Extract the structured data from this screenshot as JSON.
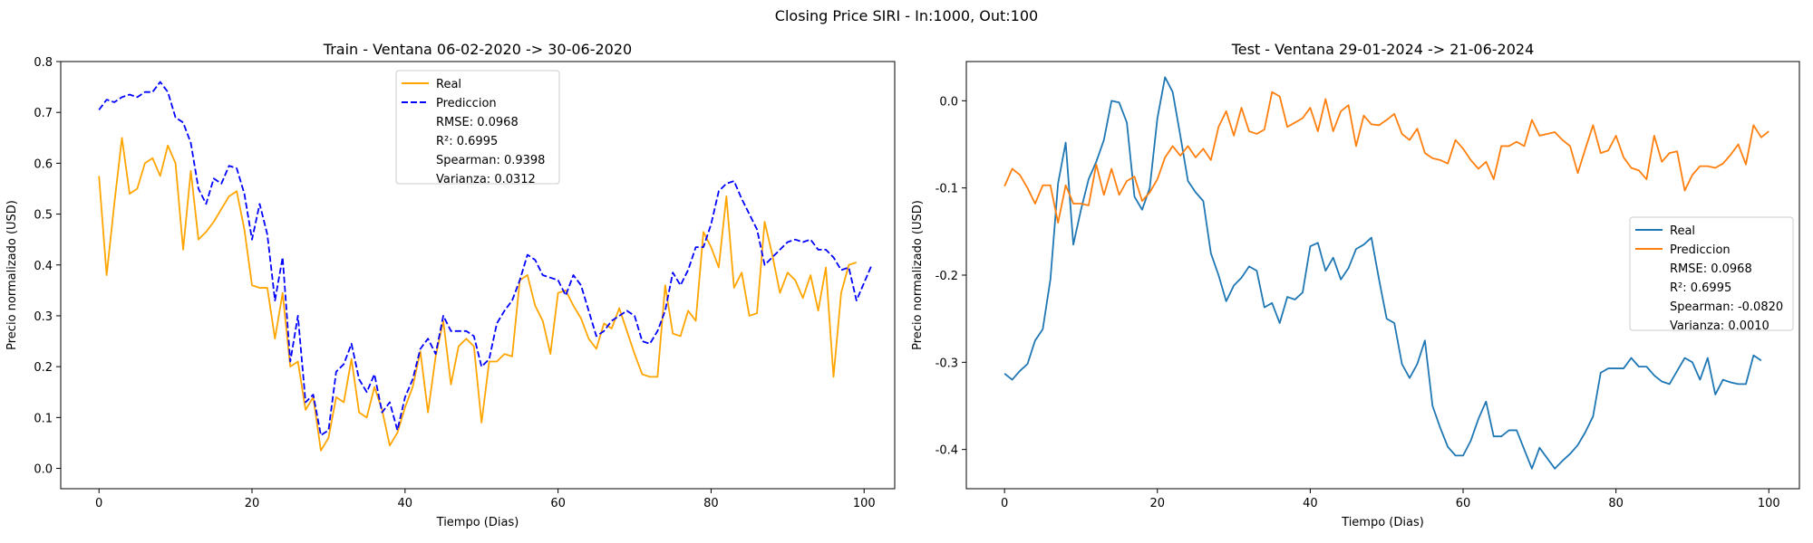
{
  "suptitle": "Closing Price SIRI - In:1000, Out:100",
  "chart_data": [
    {
      "type": "line",
      "title": "Train - Ventana 06-02-2020 -> 30-06-2020",
      "xlabel": "Tiempo (Dias)",
      "ylabel": "Precio normalizado (USD)",
      "xlim": [
        -5,
        104
      ],
      "ylim": [
        -0.04,
        0.8
      ],
      "xticks": [
        0,
        20,
        40,
        60,
        80,
        100
      ],
      "yticks": [
        0.0,
        0.1,
        0.2,
        0.3,
        0.4,
        0.5,
        0.6,
        0.7,
        0.8
      ],
      "grid": false,
      "legend_position": "upper-center",
      "legend_extra": [
        "RMSE: 0.0968",
        "R²: 0.6995",
        "Spearman: 0.9398",
        "Varianza: 0.0312"
      ],
      "series": [
        {
          "name": "Real",
          "color": "#FFA500",
          "dash": "solid",
          "values": [
            0.575,
            0.38,
            0.52,
            0.65,
            0.54,
            0.55,
            0.6,
            0.61,
            0.575,
            0.635,
            0.6,
            0.43,
            0.585,
            0.45,
            0.465,
            0.485,
            0.51,
            0.535,
            0.545,
            0.47,
            0.36,
            0.355,
            0.355,
            0.255,
            0.345,
            0.2,
            0.21,
            0.115,
            0.14,
            0.035,
            0.06,
            0.14,
            0.13,
            0.215,
            0.11,
            0.1,
            0.16,
            0.115,
            0.045,
            0.07,
            0.12,
            0.16,
            0.23,
            0.11,
            0.22,
            0.29,
            0.165,
            0.24,
            0.255,
            0.24,
            0.09,
            0.21,
            0.21,
            0.225,
            0.22,
            0.37,
            0.38,
            0.32,
            0.29,
            0.225,
            0.345,
            0.35,
            0.32,
            0.295,
            0.255,
            0.235,
            0.285,
            0.275,
            0.315,
            0.27,
            0.225,
            0.185,
            0.18,
            0.18,
            0.36,
            0.265,
            0.26,
            0.31,
            0.29,
            0.465,
            0.435,
            0.395,
            0.535,
            0.355,
            0.385,
            0.3,
            0.305,
            0.485,
            0.42,
            0.345,
            0.385,
            0.37,
            0.335,
            0.38,
            0.31,
            0.395,
            0.18,
            0.345,
            0.4,
            0.405
          ]
        },
        {
          "name": "Prediccion",
          "color": "#0000FF",
          "dash": "dashed",
          "values": [
            0.705,
            0.725,
            0.72,
            0.73,
            0.735,
            0.73,
            0.74,
            0.74,
            0.76,
            0.74,
            0.69,
            0.68,
            0.64,
            0.55,
            0.52,
            0.57,
            0.56,
            0.595,
            0.59,
            0.54,
            0.45,
            0.52,
            0.46,
            0.33,
            0.415,
            0.21,
            0.3,
            0.13,
            0.145,
            0.065,
            0.075,
            0.19,
            0.205,
            0.245,
            0.175,
            0.15,
            0.185,
            0.11,
            0.13,
            0.075,
            0.14,
            0.175,
            0.235,
            0.255,
            0.225,
            0.3,
            0.27,
            0.27,
            0.27,
            0.26,
            0.2,
            0.215,
            0.285,
            0.31,
            0.33,
            0.37,
            0.42,
            0.41,
            0.38,
            0.375,
            0.37,
            0.34,
            0.38,
            0.36,
            0.31,
            0.26,
            0.27,
            0.29,
            0.3,
            0.31,
            0.3,
            0.25,
            0.245,
            0.27,
            0.31,
            0.385,
            0.36,
            0.39,
            0.435,
            0.435,
            0.48,
            0.545,
            0.56,
            0.565,
            0.53,
            0.5,
            0.47,
            0.4,
            0.415,
            0.43,
            0.445,
            0.45,
            0.445,
            0.45,
            0.43,
            0.43,
            0.415,
            0.39,
            0.395,
            0.33,
            0.365,
            0.4
          ]
        }
      ]
    },
    {
      "type": "line",
      "title": "Test - Ventana 29-01-2024 -> 21-06-2024",
      "xlabel": "Tiempo (Dias)",
      "ylabel": "Precio normalizado (USD)",
      "xlim": [
        -5,
        104
      ],
      "ylim": [
        -0.445,
        0.045
      ],
      "xticks": [
        0,
        20,
        40,
        60,
        80,
        100
      ],
      "yticks": [
        -0.4,
        -0.3,
        -0.2,
        -0.1,
        0.0
      ],
      "grid": false,
      "legend_position": "center-right",
      "legend_extra": [
        "RMSE: 0.0968",
        "R²: 0.6995",
        "Spearman: -0.0820",
        "Varianza: 0.0010"
      ],
      "series": [
        {
          "name": "Real",
          "color": "#1F77B4",
          "dash": "solid",
          "values": [
            -0.313,
            -0.32,
            -0.31,
            -0.302,
            -0.275,
            -0.262,
            -0.205,
            -0.095,
            -0.048,
            -0.165,
            -0.125,
            -0.09,
            -0.07,
            -0.045,
            0.0,
            -0.002,
            -0.025,
            -0.11,
            -0.125,
            -0.1,
            -0.02,
            0.027,
            0.01,
            -0.04,
            -0.092,
            -0.105,
            -0.115,
            -0.175,
            -0.2,
            -0.23,
            -0.212,
            -0.203,
            -0.19,
            -0.195,
            -0.237,
            -0.232,
            -0.255,
            -0.225,
            -0.228,
            -0.22,
            -0.167,
            -0.163,
            -0.195,
            -0.18,
            -0.205,
            -0.192,
            -0.17,
            -0.165,
            -0.157,
            -0.205,
            -0.25,
            -0.255,
            -0.302,
            -0.318,
            -0.302,
            -0.275,
            -0.35,
            -0.375,
            -0.397,
            -0.407,
            -0.407,
            -0.39,
            -0.365,
            -0.345,
            -0.385,
            -0.385,
            -0.378,
            -0.378,
            -0.4,
            -0.422,
            -0.398,
            -0.41,
            -0.422,
            -0.413,
            -0.405,
            -0.395,
            -0.38,
            -0.362,
            -0.312,
            -0.307,
            -0.307,
            -0.307,
            -0.295,
            -0.305,
            -0.305,
            -0.315,
            -0.322,
            -0.325,
            -0.31,
            -0.295,
            -0.3,
            -0.32,
            -0.295,
            -0.337,
            -0.32,
            -0.323,
            -0.325,
            -0.325,
            -0.292,
            -0.298
          ]
        },
        {
          "name": "Prediccion",
          "color": "#FF7F0E",
          "dash": "solid",
          "values": [
            -0.098,
            -0.078,
            -0.085,
            -0.1,
            -0.118,
            -0.097,
            -0.097,
            -0.14,
            -0.097,
            -0.118,
            -0.118,
            -0.12,
            -0.073,
            -0.108,
            -0.078,
            -0.108,
            -0.092,
            -0.087,
            -0.115,
            -0.105,
            -0.09,
            -0.065,
            -0.052,
            -0.063,
            -0.052,
            -0.065,
            -0.055,
            -0.068,
            -0.03,
            -0.012,
            -0.04,
            -0.008,
            -0.035,
            -0.038,
            -0.033,
            0.01,
            0.005,
            -0.03,
            -0.025,
            -0.02,
            -0.008,
            -0.035,
            0.002,
            -0.035,
            -0.012,
            -0.005,
            -0.052,
            -0.017,
            -0.027,
            -0.028,
            -0.022,
            -0.015,
            -0.038,
            -0.045,
            -0.032,
            -0.06,
            -0.066,
            -0.068,
            -0.072,
            -0.045,
            -0.055,
            -0.068,
            -0.078,
            -0.07,
            -0.09,
            -0.052,
            -0.052,
            -0.047,
            -0.052,
            -0.022,
            -0.04,
            -0.038,
            -0.036,
            -0.045,
            -0.052,
            -0.083,
            -0.055,
            -0.028,
            -0.06,
            -0.057,
            -0.04,
            -0.065,
            -0.077,
            -0.08,
            -0.09,
            -0.04,
            -0.07,
            -0.06,
            -0.058,
            -0.103,
            -0.085,
            -0.075,
            -0.075,
            -0.077,
            -0.072,
            -0.062,
            -0.05,
            -0.073,
            -0.028,
            -0.042,
            -0.035
          ]
        }
      ]
    }
  ]
}
